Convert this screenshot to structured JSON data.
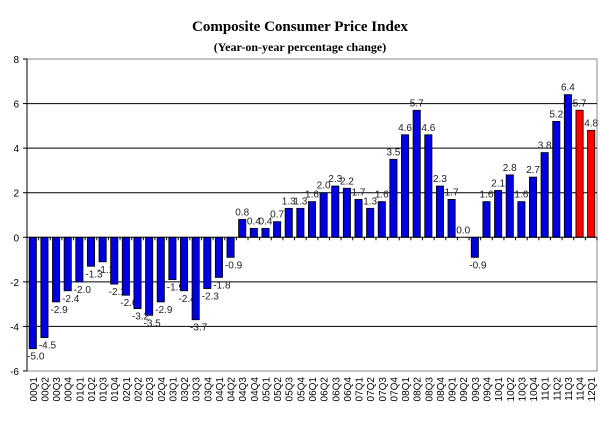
{
  "chart_data": {
    "type": "bar",
    "title": "Composite Consumer Price Index",
    "subtitle": "(Year-on-year percentage change)",
    "xlabel": "",
    "ylabel": "",
    "ylim": [
      -6,
      8
    ],
    "yticks": [
      -6,
      -4,
      -2,
      0,
      2,
      4,
      6,
      8
    ],
    "grid": true,
    "categories": [
      "00Q1",
      "00Q2",
      "00Q3",
      "00Q4",
      "01Q1",
      "01Q2",
      "01Q3",
      "01Q4",
      "02Q1",
      "02Q2",
      "02Q3",
      "02Q4",
      "03Q1",
      "03Q2",
      "03Q3",
      "03Q4",
      "04Q1",
      "04Q2",
      "04Q3",
      "04Q4",
      "05Q1",
      "05Q2",
      "05Q3",
      "05Q4",
      "06Q1",
      "06Q2",
      "06Q3",
      "06Q4",
      "07Q1",
      "07Q2",
      "07Q3",
      "07Q4",
      "08Q1",
      "08Q2",
      "08Q3",
      "08Q4",
      "09Q1",
      "09Q2",
      "09Q3",
      "09Q4",
      "10Q1",
      "10Q2",
      "10Q3",
      "10Q4",
      "11Q1",
      "11Q2",
      "11Q3",
      "11Q4",
      "12Q1"
    ],
    "values": [
      -5.0,
      -4.5,
      -2.9,
      -2.4,
      -2.0,
      -1.3,
      -1.1,
      -2.1,
      -2.6,
      -3.2,
      -3.5,
      -2.9,
      -1.9,
      -2.4,
      -3.7,
      -2.3,
      -1.8,
      -0.9,
      0.8,
      0.4,
      0.4,
      0.7,
      1.3,
      1.3,
      1.6,
      2.0,
      2.3,
      2.2,
      1.7,
      1.3,
      1.6,
      3.5,
      4.6,
      5.7,
      4.6,
      2.3,
      1.7,
      0.0,
      -0.9,
      1.6,
      2.1,
      2.8,
      1.6,
      2.7,
      3.8,
      5.2,
      6.4,
      5.7,
      4.8
    ],
    "colors": {
      "default": "#0000e0",
      "highlight": "#ff0000"
    },
    "highlighted": [
      "11Q4",
      "12Q1"
    ]
  }
}
